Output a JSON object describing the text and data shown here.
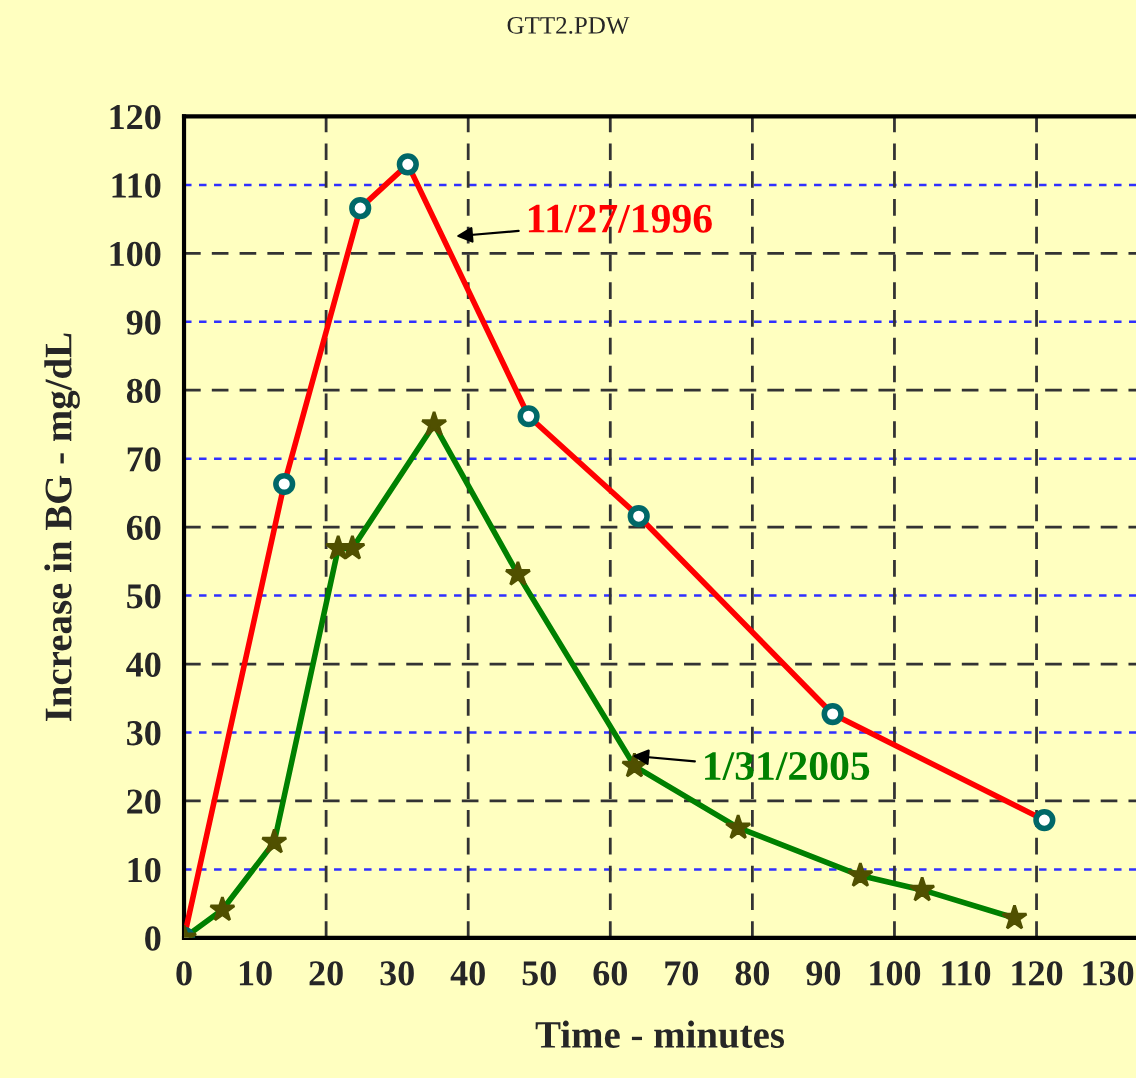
{
  "chart_data": {
    "type": "line",
    "title": "GTT2.PDW",
    "xlabel": "Time - minutes",
    "ylabel": "Increase in BG - mg/dL",
    "xlim": [
      0,
      134
    ],
    "xticks": [
      0,
      10,
      20,
      30,
      40,
      50,
      60,
      70,
      80,
      90,
      100,
      110,
      120,
      130
    ],
    "ylim": [
      0,
      120
    ],
    "yticks": [
      0,
      10,
      20,
      30,
      40,
      50,
      60,
      70,
      80,
      90,
      100,
      110,
      120
    ],
    "grid": true,
    "legend": false,
    "line_style": "solid",
    "series": [
      {
        "color": "#ff0000",
        "marker": "circle",
        "x": [
          0,
          14.1,
          24.8,
          31.5,
          48.5,
          64,
          91.3,
          121.1
        ],
        "values": [
          0,
          66.3,
          106.6,
          113,
          76.2,
          61.6,
          32.7,
          17.2
        ]
      },
      {
        "color": "#008000",
        "marker": "star",
        "x": [
          0,
          5.4,
          12.7,
          21.7,
          23.7,
          35.2,
          47.0,
          63.4,
          78.0,
          95.2,
          103.9,
          116.9
        ],
        "values": [
          0,
          4.1,
          14.0,
          56.9,
          56.9,
          75.0,
          53.1,
          25.1,
          16.1,
          9.1,
          7.0,
          2.9
        ]
      }
    ],
    "annotations": [
      {
        "text": "11/27/1996",
        "x": 38.3,
        "y": 102.5
      },
      {
        "text": "1/31/2005",
        "x": 63.1,
        "y": 26.6
      }
    ]
  }
}
